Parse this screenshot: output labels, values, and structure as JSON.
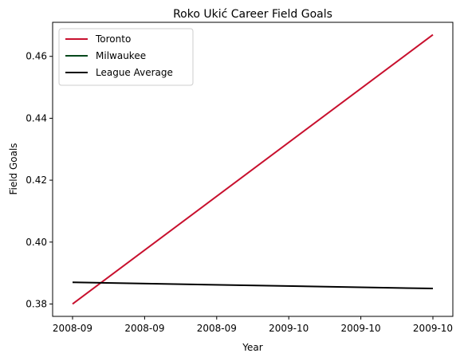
{
  "chart_data": {
    "type": "line",
    "title": "Roko Ukić Career Field Goals",
    "xlabel": "Year",
    "ylabel": "Field Goals",
    "x_tick_labels": [
      "2008-09",
      "2008-09",
      "2008-09",
      "2009-10",
      "2009-10",
      "2009-10"
    ],
    "x_domain": [
      0,
      1
    ],
    "ylim": [
      0.376,
      0.471
    ],
    "y_ticks": [
      0.38,
      0.4,
      0.42,
      0.44,
      0.46
    ],
    "y_tick_labels": [
      "0.38",
      "0.40",
      "0.42",
      "0.44",
      "0.46"
    ],
    "grid": false,
    "legend_position": "top-left",
    "series": [
      {
        "name": "Toronto",
        "color": "#c8102e",
        "x": [
          0,
          1
        ],
        "values": [
          0.38,
          0.467
        ]
      },
      {
        "name": "Milwaukee",
        "color": "#00471b",
        "x": [],
        "values": []
      },
      {
        "name": "League Average",
        "color": "#000000",
        "x": [
          0,
          1
        ],
        "values": [
          0.387,
          0.385
        ]
      }
    ]
  }
}
